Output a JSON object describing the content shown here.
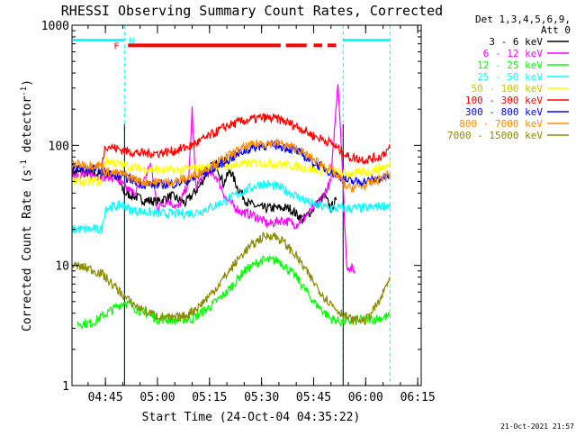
{
  "chart_data": {
    "type": "line",
    "title": "RHESSI Observing Summary Count Rates, Corrected",
    "xlabel": "Start Time (24-Oct-04 04:35:22)",
    "ylabel": "Corrected Count Rate (s^-1 detector^-1)",
    "ylabel_main": "Corrected Count Rate (s",
    "ylabel_sup1": "-1",
    "ylabel_mid": " detector",
    "ylabel_sup2": "-1",
    "ylabel_end": ")",
    "y_scale": "log",
    "ylim": [
      1,
      1000
    ],
    "xlim": [
      "04:35:22",
      "06:16:00"
    ],
    "y_ticks": [
      {
        "value": 1,
        "label": "1"
      },
      {
        "value": 10,
        "label": "10"
      },
      {
        "value": 100,
        "label": "100"
      },
      {
        "value": 1000,
        "label": "1000"
      }
    ],
    "x_ticks": [
      {
        "value": "04:45",
        "label": "04:45"
      },
      {
        "value": "05:00",
        "label": "05:00"
      },
      {
        "value": "05:15",
        "label": "05:15"
      },
      {
        "value": "05:30",
        "label": "05:30"
      },
      {
        "value": "05:45",
        "label": "05:45"
      },
      {
        "value": "06:00",
        "label": "06:00"
      },
      {
        "value": "06:15",
        "label": "06:15"
      }
    ],
    "legend_header": [
      "Det 1,3,4,5,6,9,",
      "Att 0"
    ],
    "legend_position": "right",
    "flag_labels": {
      "flare": "F",
      "night": "N"
    },
    "timestamp": "21-Oct-2021 21:57",
    "series": [
      {
        "name": "3 - 6 keV",
        "color": "#000000",
        "points": [
          [
            "04:35:30",
            60
          ],
          [
            "04:42:00",
            58
          ],
          [
            "04:48:00",
            57
          ],
          [
            "04:50:30",
            40
          ],
          [
            "04:53:00",
            38
          ],
          [
            "04:56:00",
            35
          ],
          [
            "05:00:00",
            34
          ],
          [
            "05:04:00",
            38
          ],
          [
            "05:08:00",
            33
          ],
          [
            "05:12:00",
            45
          ],
          [
            "05:15:00",
            65
          ],
          [
            "05:17:00",
            70
          ],
          [
            "05:19:00",
            48
          ],
          [
            "05:21:00",
            62
          ],
          [
            "05:23:00",
            45
          ],
          [
            "05:26:00",
            33
          ],
          [
            "05:30:00",
            30
          ],
          [
            "05:34:00",
            30
          ],
          [
            "05:38:00",
            30
          ],
          [
            "05:42:00",
            24
          ],
          [
            "05:45:00",
            30
          ],
          [
            "05:48:00",
            38
          ],
          [
            "05:50:00",
            30
          ],
          [
            "05:51:30",
            35
          ]
        ]
      },
      {
        "name": "6 - 12 keV",
        "color": "#ff00ff",
        "points": [
          [
            "04:35:30",
            58
          ],
          [
            "04:42:00",
            56
          ],
          [
            "04:48:00",
            54
          ],
          [
            "04:50:30",
            45
          ],
          [
            "04:53:00",
            40
          ],
          [
            "04:56:00",
            50
          ],
          [
            "04:58:00",
            70
          ],
          [
            "05:00:00",
            30
          ],
          [
            "05:03:00",
            35
          ],
          [
            "05:06:00",
            30
          ],
          [
            "05:09:00",
            50
          ],
          [
            "05:10:00",
            200
          ],
          [
            "05:11:00",
            45
          ],
          [
            "05:14:00",
            60
          ],
          [
            "05:17:00",
            55
          ],
          [
            "05:20:00",
            35
          ],
          [
            "05:24:00",
            28
          ],
          [
            "05:28:00",
            26
          ],
          [
            "05:32:00",
            22
          ],
          [
            "05:36:00",
            24
          ],
          [
            "05:40:00",
            22
          ],
          [
            "05:44:00",
            28
          ],
          [
            "05:47:00",
            35
          ],
          [
            "05:50:00",
            50
          ],
          [
            "05:52:00",
            350
          ],
          [
            "05:53:00",
            100
          ],
          [
            "05:54:30",
            10
          ],
          [
            "05:57:00",
            9
          ]
        ]
      },
      {
        "name": "12 - 25 keV",
        "color": "#00ff00",
        "points": [
          [
            "04:37:00",
            3.3
          ],
          [
            "04:41:00",
            3.3
          ],
          [
            "04:50:30",
            5
          ],
          [
            "04:55:00",
            4.2
          ],
          [
            "05:00:00",
            3.6
          ],
          [
            "05:05:00",
            3.5
          ],
          [
            "05:10:00",
            3.6
          ],
          [
            "05:15:00",
            4.5
          ],
          [
            "05:20:00",
            6
          ],
          [
            "05:25:00",
            9
          ],
          [
            "05:30:00",
            11
          ],
          [
            "05:35:00",
            11
          ],
          [
            "05:40:00",
            8
          ],
          [
            "05:45:00",
            5
          ],
          [
            "05:50:00",
            3.6
          ],
          [
            "05:53:00",
            3.4
          ],
          [
            "05:58:00",
            3.5
          ],
          [
            "06:03:00",
            3.6
          ],
          [
            "06:07:00",
            3.8
          ]
        ]
      },
      {
        "name": "25 - 50 keV",
        "color": "#00ffff",
        "points": [
          [
            "04:35:30",
            20
          ],
          [
            "04:44:00",
            20
          ],
          [
            "04:45:00",
            30
          ],
          [
            "04:50:30",
            32
          ],
          [
            "04:52:00",
            29
          ],
          [
            "04:56:00",
            28
          ],
          [
            "05:00:00",
            27
          ],
          [
            "05:04:00",
            27
          ],
          [
            "05:08:00",
            27
          ],
          [
            "05:12:00",
            28
          ],
          [
            "05:16:00",
            31
          ],
          [
            "05:20:00",
            35
          ],
          [
            "05:25:00",
            42
          ],
          [
            "05:30:00",
            48
          ],
          [
            "05:35:00",
            45
          ],
          [
            "05:40:00",
            38
          ],
          [
            "05:45:00",
            32
          ],
          [
            "05:50:00",
            30
          ],
          [
            "05:55:00",
            30
          ],
          [
            "06:00:00",
            30
          ],
          [
            "06:07:00",
            32
          ]
        ]
      },
      {
        "name": "50 - 100 keV",
        "color": "#ffff00",
        "points": [
          [
            "04:35:30",
            50
          ],
          [
            "04:44:00",
            50
          ],
          [
            "04:45:00",
            75
          ],
          [
            "04:50:30",
            68
          ],
          [
            "04:55:00",
            64
          ],
          [
            "05:00:00",
            62
          ],
          [
            "05:05:00",
            62
          ],
          [
            "05:10:00",
            64
          ],
          [
            "05:15:00",
            66
          ],
          [
            "05:20:00",
            68
          ],
          [
            "05:25:00",
            70
          ],
          [
            "05:30:00",
            72
          ],
          [
            "05:35:00",
            70
          ],
          [
            "05:40:00",
            67
          ],
          [
            "05:45:00",
            63
          ],
          [
            "05:50:00",
            60
          ],
          [
            "05:55:00",
            58
          ],
          [
            "06:00:00",
            60
          ],
          [
            "06:07:00",
            68
          ]
        ]
      },
      {
        "name": "100 - 300 keV",
        "color": "#ff0000",
        "points": [
          [
            "04:44:00",
            70
          ],
          [
            "04:45:00",
            100
          ],
          [
            "04:50:30",
            90
          ],
          [
            "04:55:00",
            86
          ],
          [
            "05:00:00",
            86
          ],
          [
            "05:05:00",
            90
          ],
          [
            "05:10:00",
            100
          ],
          [
            "05:15:00",
            120
          ],
          [
            "05:20:00",
            145
          ],
          [
            "05:25:00",
            160
          ],
          [
            "05:30:00",
            170
          ],
          [
            "05:35:00",
            165
          ],
          [
            "05:40:00",
            145
          ],
          [
            "05:45:00",
            120
          ],
          [
            "05:50:00",
            105
          ],
          [
            "05:55:00",
            80
          ],
          [
            "06:00:00",
            76
          ],
          [
            "06:04:00",
            80
          ],
          [
            "06:07:00",
            95
          ]
        ]
      },
      {
        "name": "300 - 800 keV",
        "color": "#0000ff",
        "points": [
          [
            "04:35:30",
            65
          ],
          [
            "04:44:00",
            63
          ],
          [
            "04:45:00",
            58
          ],
          [
            "04:50:30",
            55
          ],
          [
            "04:55:00",
            48
          ],
          [
            "05:00:00",
            47
          ],
          [
            "05:05:00",
            48
          ],
          [
            "05:10:00",
            52
          ],
          [
            "05:15:00",
            62
          ],
          [
            "05:20:00",
            75
          ],
          [
            "05:25:00",
            90
          ],
          [
            "05:30:00",
            100
          ],
          [
            "05:35:00",
            100
          ],
          [
            "05:40:00",
            90
          ],
          [
            "05:45:00",
            72
          ],
          [
            "05:50:00",
            60
          ],
          [
            "05:55:00",
            50
          ],
          [
            "06:00:00",
            50
          ],
          [
            "06:07:00",
            55
          ]
        ]
      },
      {
        "name": "800 - 7000 keV",
        "color": "#ff8c00",
        "points": [
          [
            "04:35:30",
            70
          ],
          [
            "04:44:00",
            68
          ],
          [
            "04:45:00",
            60
          ],
          [
            "04:50:30",
            57
          ],
          [
            "04:55:00",
            50
          ],
          [
            "05:00:00",
            49
          ],
          [
            "05:05:00",
            50
          ],
          [
            "05:10:00",
            55
          ],
          [
            "05:15:00",
            66
          ],
          [
            "05:20:00",
            80
          ],
          [
            "05:25:00",
            96
          ],
          [
            "05:30:00",
            105
          ],
          [
            "05:35:00",
            104
          ],
          [
            "05:40:00",
            94
          ],
          [
            "05:45:00",
            76
          ],
          [
            "05:50:00",
            63
          ],
          [
            "05:55:00",
            44
          ],
          [
            "06:00:00",
            46
          ],
          [
            "06:07:00",
            58
          ]
        ]
      },
      {
        "name": "7000 - 15000 keV",
        "color": "#8b8b00",
        "points": [
          [
            "04:35:30",
            10
          ],
          [
            "04:40:00",
            9.5
          ],
          [
            "04:44:00",
            8.5
          ],
          [
            "04:48:00",
            6.5
          ],
          [
            "04:52:00",
            5
          ],
          [
            "04:56:00",
            4.2
          ],
          [
            "05:00:00",
            3.8
          ],
          [
            "05:04:00",
            3.6
          ],
          [
            "05:08:00",
            3.8
          ],
          [
            "05:12:00",
            4.6
          ],
          [
            "05:16:00",
            6
          ],
          [
            "05:20:00",
            8.5
          ],
          [
            "05:25:00",
            13
          ],
          [
            "05:30:00",
            17
          ],
          [
            "05:33:00",
            18
          ],
          [
            "05:36:00",
            16
          ],
          [
            "05:40:00",
            12
          ],
          [
            "05:44:00",
            8
          ],
          [
            "05:48:00",
            5.5
          ],
          [
            "05:52:00",
            4.2
          ],
          [
            "05:56:00",
            3.5
          ],
          [
            "06:00:00",
            3.5
          ],
          [
            "06:04:00",
            5
          ],
          [
            "06:07:00",
            8
          ]
        ]
      }
    ],
    "overlays": {
      "attenuator_bar": {
        "color": "#00ffff",
        "segments": [
          [
            "04:35:22",
            "04:50:30"
          ],
          [
            "05:53:30",
            "06:07:00"
          ]
        ],
        "level": 750
      },
      "flare_bar": {
        "color": "#ff0000",
        "segments": [
          [
            "04:51:30",
            "05:35:30"
          ],
          [
            "05:37:00",
            "05:43:00"
          ],
          [
            "05:45:00",
            "05:47:30"
          ],
          [
            "05:49:00",
            "05:51:30"
          ]
        ],
        "level": 680
      },
      "night_markers": {
        "color": "#00ffff",
        "times": [
          "04:50:30",
          "05:53:30",
          "06:07:00"
        ]
      },
      "saa_markers": {
        "color": "#000000",
        "times": [
          "04:50:30",
          "05:53:30"
        ]
      }
    }
  }
}
